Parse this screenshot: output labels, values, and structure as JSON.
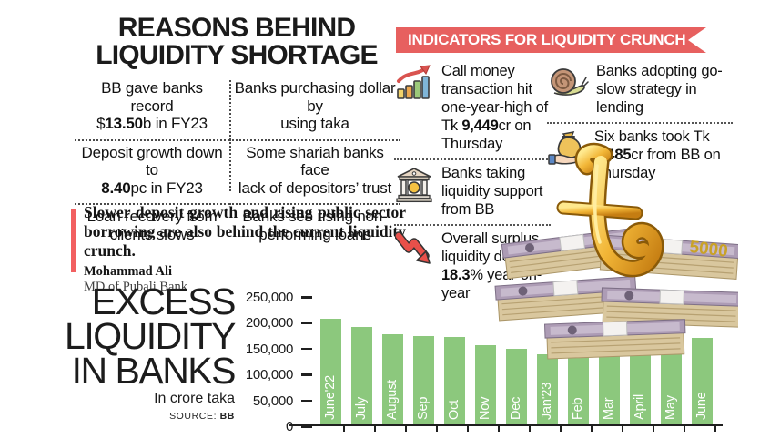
{
  "colors": {
    "banner_red": "#e7605f",
    "quote_accent": "#f26061",
    "bar_green": "#8cc87d"
  },
  "reasons": {
    "title_line1": "REASONS BEHIND",
    "title_line2": "LIQUIDITY SHORTAGE",
    "cells": [
      {
        "segments": [
          {
            "t": "BB gave banks record"
          },
          {
            "br": true
          },
          {
            "t": "$"
          },
          {
            "t": "13.50",
            "b": true
          },
          {
            "t": "b in FY23"
          }
        ]
      },
      {
        "segments": [
          {
            "t": "Banks purchasing dollar by"
          },
          {
            "br": true
          },
          {
            "t": "using taka"
          }
        ]
      },
      {
        "segments": [
          {
            "t": "Deposit growth down to"
          },
          {
            "br": true
          },
          {
            "t": "8.40",
            "b": true
          },
          {
            "t": "pc in FY23"
          }
        ]
      },
      {
        "segments": [
          {
            "t": "Some shariah banks face"
          },
          {
            "br": true
          },
          {
            "t": "lack of depositors’ trust"
          }
        ]
      },
      {
        "segments": [
          {
            "t": "Loan recovery from"
          },
          {
            "br": true
          },
          {
            "t": "clients slows"
          }
        ]
      },
      {
        "segments": [
          {
            "t": "Banks see rising non-"
          },
          {
            "br": true
          },
          {
            "t": "performing loans"
          }
        ]
      }
    ]
  },
  "quote": {
    "text": "Slower deposit growth and rising public sector borrowing are also behind the current liquidity crunch.",
    "author": "Mohammad Ali",
    "role": "MD of Pubali Bank"
  },
  "indicators": {
    "title": "INDICATORS FOR LIQUIDITY CRUNCH",
    "items": [
      {
        "icon": "bar-chart-up-icon",
        "segments": [
          {
            "t": "Call money transaction hit one-year-high of Tk "
          },
          {
            "t": "9,449",
            "b": true
          },
          {
            "t": "cr on Thursday"
          }
        ]
      },
      {
        "icon": "bank-icon",
        "segments": [
          {
            "t": "Banks taking liquidity support from BB"
          }
        ]
      },
      {
        "icon": "down-arrow-icon",
        "segments": [
          {
            "t": "Overall surplus liquidity down by "
          },
          {
            "t": "18.3",
            "b": true
          },
          {
            "t": "% year-on-year"
          }
        ]
      },
      {
        "icon": "snail-icon",
        "segments": [
          {
            "t": "Banks adopting go-slow strategy in lending"
          }
        ]
      },
      {
        "icon": "money-bag-icon",
        "segments": [
          {
            "t": "Six banks took Tk "
          },
          {
            "t": "3,485",
            "b": true
          },
          {
            "t": "cr from BB on Thursday"
          }
        ]
      }
    ]
  },
  "chart": {
    "title_lines": [
      "EXCESS",
      "LIQUIDITY",
      "IN BANKS"
    ],
    "subtitle": "In crore taka",
    "source_label": "SOURCE: ",
    "source_value": "BB"
  },
  "chart_data": {
    "type": "bar",
    "title": "EXCESS LIQUIDITY IN BANKS",
    "unit": "In crore taka",
    "source": "BB",
    "categories": [
      "June'22",
      "July",
      "August",
      "Sep",
      "Oct",
      "Nov",
      "Dec",
      "Jan'23",
      "Feb",
      "Mar",
      "April",
      "May",
      "June"
    ],
    "values": [
      204000,
      189000,
      174000,
      170000,
      169000,
      154000,
      146000,
      136000,
      150000,
      154000,
      156000,
      163000,
      168000
    ],
    "ylim": [
      0,
      250000
    ],
    "yticks": [
      "250,000",
      "200,000",
      "150,000",
      "100,000",
      "50,000",
      "0"
    ],
    "bar_color": "#8cc87d",
    "grid": false,
    "legend": "none"
  },
  "money": {
    "note_value": "5000"
  }
}
